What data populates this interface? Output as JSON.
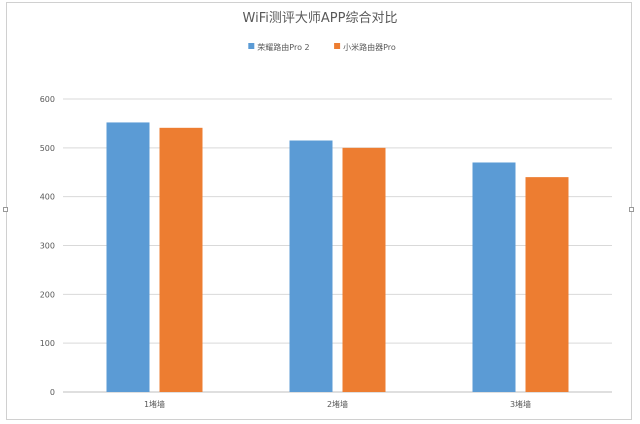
{
  "chart_data": {
    "type": "bar",
    "title": "WiFi测评大师APP综合对比",
    "categories": [
      "1堵墙",
      "2堵墙",
      "3堵墙"
    ],
    "series": [
      {
        "name": "荣耀路由Pro 2",
        "values": [
          552,
          515,
          470
        ],
        "color": "#5b9bd5"
      },
      {
        "name": "小米路由器Pro",
        "values": [
          541,
          500,
          440
        ],
        "color": "#ed7d31"
      }
    ],
    "yticks": [
      0,
      100,
      200,
      300,
      400,
      500,
      600
    ],
    "ylim": [
      0,
      600
    ],
    "grid": true,
    "legend": "top"
  }
}
